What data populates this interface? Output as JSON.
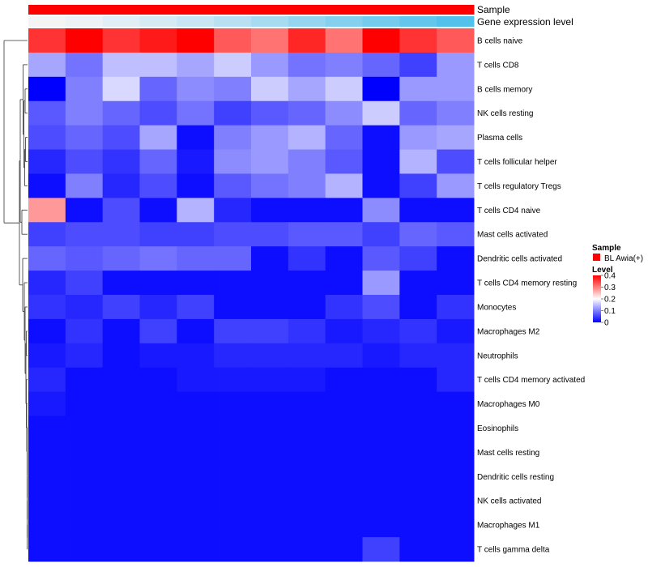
{
  "chart_data": {
    "type": "heatmap",
    "rows": [
      "B cells naive",
      "T cells CD8",
      "B cells memory",
      "NK cells resting",
      "Plasma cells",
      "T cells follicular helper",
      "T cells regulatory  Tregs",
      "T cells CD4 naive",
      "Mast cells activated",
      "Dendritic cells activated",
      "T cells CD4 memory resting",
      "Monocytes",
      "Macrophages M2",
      "Neutrophils",
      "T cells CD4 memory activated",
      "Macrophages M0",
      "Eosinophils",
      "Mast cells resting",
      "Dendritic cells resting",
      "NK cells activated",
      "Macrophages M1",
      "T cells gamma delta"
    ],
    "n_columns": 12,
    "values": [
      [
        0.36,
        0.4,
        0.36,
        0.38,
        0.4,
        0.33,
        0.31,
        0.37,
        0.31,
        0.4,
        0.36,
        0.33
      ],
      [
        0.13,
        0.09,
        0.15,
        0.15,
        0.13,
        0.16,
        0.12,
        0.09,
        0.1,
        0.08,
        0.05,
        0.12
      ],
      [
        0.0,
        0.1,
        0.17,
        0.08,
        0.11,
        0.1,
        0.16,
        0.13,
        0.16,
        0.0,
        0.12,
        0.12
      ],
      [
        0.07,
        0.1,
        0.08,
        0.06,
        0.09,
        0.05,
        0.07,
        0.08,
        0.11,
        0.16,
        0.08,
        0.1
      ],
      [
        0.06,
        0.08,
        0.06,
        0.13,
        0.01,
        0.1,
        0.12,
        0.14,
        0.08,
        0.01,
        0.12,
        0.13
      ],
      [
        0.03,
        0.06,
        0.04,
        0.08,
        0.02,
        0.11,
        0.12,
        0.1,
        0.07,
        0.01,
        0.14,
        0.06
      ],
      [
        0.01,
        0.1,
        0.03,
        0.06,
        0.01,
        0.07,
        0.09,
        0.1,
        0.14,
        0.01,
        0.05,
        0.12
      ],
      [
        0.28,
        0.01,
        0.06,
        0.01,
        0.14,
        0.03,
        0.01,
        0.01,
        0.01,
        0.11,
        0.01,
        0.01
      ],
      [
        0.05,
        0.06,
        0.06,
        0.05,
        0.05,
        0.06,
        0.06,
        0.07,
        0.07,
        0.05,
        0.08,
        0.07
      ],
      [
        0.08,
        0.07,
        0.08,
        0.09,
        0.08,
        0.08,
        0.01,
        0.04,
        0.01,
        0.07,
        0.05,
        0.01
      ],
      [
        0.03,
        0.05,
        0.01,
        0.01,
        0.01,
        0.01,
        0.01,
        0.01,
        0.01,
        0.12,
        0.01,
        0.01
      ],
      [
        0.04,
        0.03,
        0.05,
        0.03,
        0.05,
        0.01,
        0.01,
        0.01,
        0.04,
        0.06,
        0.01,
        0.04
      ],
      [
        0.01,
        0.04,
        0.01,
        0.05,
        0.01,
        0.05,
        0.05,
        0.04,
        0.02,
        0.03,
        0.04,
        0.02
      ],
      [
        0.02,
        0.03,
        0.01,
        0.02,
        0.02,
        0.03,
        0.03,
        0.03,
        0.03,
        0.02,
        0.03,
        0.03
      ],
      [
        0.03,
        0.01,
        0.01,
        0.01,
        0.02,
        0.02,
        0.02,
        0.02,
        0.01,
        0.01,
        0.01,
        0.03
      ],
      [
        0.02,
        0.01,
        0.01,
        0.01,
        0.01,
        0.01,
        0.01,
        0.01,
        0.01,
        0.01,
        0.01,
        0.01
      ],
      [
        0.01,
        0.01,
        0.01,
        0.01,
        0.01,
        0.01,
        0.01,
        0.01,
        0.01,
        0.01,
        0.01,
        0.01
      ],
      [
        0.01,
        0.01,
        0.01,
        0.01,
        0.01,
        0.01,
        0.01,
        0.01,
        0.01,
        0.01,
        0.01,
        0.01
      ],
      [
        0.01,
        0.01,
        0.01,
        0.01,
        0.01,
        0.01,
        0.01,
        0.01,
        0.01,
        0.01,
        0.01,
        0.01
      ],
      [
        0.01,
        0.01,
        0.01,
        0.01,
        0.01,
        0.01,
        0.01,
        0.01,
        0.01,
        0.01,
        0.01,
        0.01
      ],
      [
        0.01,
        0.01,
        0.01,
        0.01,
        0.01,
        0.01,
        0.01,
        0.01,
        0.01,
        0.01,
        0.01,
        0.01
      ],
      [
        0.01,
        0.01,
        0.01,
        0.01,
        0.01,
        0.01,
        0.01,
        0.01,
        0.01,
        0.05,
        0.01,
        0.01
      ]
    ],
    "annotations": {
      "sample": {
        "label": "Sample",
        "color": "#ff0000",
        "values": [
          "BL Awia(+)",
          "BL Awia(+)",
          "BL Awia(+)",
          "BL Awia(+)",
          "BL Awia(+)",
          "BL Awia(+)",
          "BL Awia(+)",
          "BL Awia(+)",
          "BL Awia(+)",
          "BL Awia(+)",
          "BL Awia(+)",
          "BL Awia(+)"
        ]
      },
      "gene_expression_level": {
        "label": "Gene expression level",
        "colors": [
          "#f4f4f4",
          "#ecf2f6",
          "#e2eef5",
          "#d6eaf4",
          "#c8e5f3",
          "#b8e0f2",
          "#a7dbf1",
          "#96d5f0",
          "#85d0ef",
          "#74cbee",
          "#63c6ed",
          "#52c1ec"
        ]
      }
    },
    "legend": {
      "sample": {
        "title": "Sample",
        "items": [
          {
            "label": "BL Awia(+)",
            "color": "#ff0000"
          }
        ]
      },
      "level": {
        "title": "Level",
        "ticks": [
          "0.4",
          "0.3",
          "0.2",
          "0.1",
          "0"
        ],
        "tick_values": [
          0.4,
          0.3,
          0.2,
          0.1,
          0
        ]
      },
      "placement": "right"
    },
    "color_scale": {
      "min": 0,
      "mid": 0.2,
      "max": 0.4,
      "low": "#0000ff",
      "mid_color": "#ffffff",
      "high": "#ff0000"
    },
    "row_dendrogram": true
  }
}
